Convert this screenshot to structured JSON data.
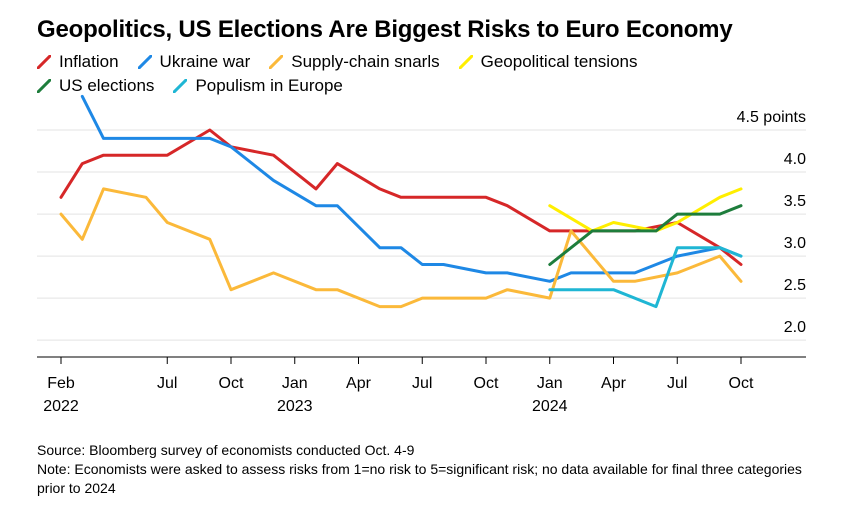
{
  "title": "Geopolitics, US Elections Are Biggest Risks to Euro Economy",
  "legend": [
    {
      "name": "Inflation",
      "color": "#d62728"
    },
    {
      "name": "Ukraine war",
      "color": "#1e88e5"
    },
    {
      "name": "Supply-chain snarls",
      "color": "#fbb93a"
    },
    {
      "name": "Geopolitical tensions",
      "color": "#ffee00"
    },
    {
      "name": "US elections",
      "color": "#1e7d3c"
    },
    {
      "name": "Populism in Europe",
      "color": "#1fb6d4"
    }
  ],
  "chart_data": {
    "type": "line",
    "title": "Geopolitics, US Elections Are Biggest Risks to Euro Economy",
    "ylim": [
      1.8,
      4.5
    ],
    "yticks": [
      {
        "value": 4.5,
        "label": "4.5 points"
      },
      {
        "value": 4.0,
        "label": "4.0"
      },
      {
        "value": 3.5,
        "label": "3.5"
      },
      {
        "value": 3.0,
        "label": "3.0"
      },
      {
        "value": 2.5,
        "label": "2.5"
      },
      {
        "value": 2.0,
        "label": "2.0"
      }
    ],
    "xticks": [
      {
        "date": "2022-02",
        "label": "Feb",
        "year": "2022"
      },
      {
        "date": "2022-07",
        "label": "Jul",
        "year": ""
      },
      {
        "date": "2022-10",
        "label": "Oct",
        "year": ""
      },
      {
        "date": "2023-01",
        "label": "Jan",
        "year": "2023"
      },
      {
        "date": "2023-04",
        "label": "Apr",
        "year": ""
      },
      {
        "date": "2023-07",
        "label": "Jul",
        "year": ""
      },
      {
        "date": "2023-10",
        "label": "Oct",
        "year": ""
      },
      {
        "date": "2024-01",
        "label": "Jan",
        "year": "2024"
      },
      {
        "date": "2024-04",
        "label": "Apr",
        "year": ""
      },
      {
        "date": "2024-07",
        "label": "Jul",
        "year": ""
      },
      {
        "date": "2024-10",
        "label": "Oct",
        "year": ""
      }
    ],
    "grid": true,
    "series": [
      {
        "name": "Inflation",
        "color": "#d62728",
        "x": [
          "2022-02",
          "2022-03",
          "2022-04",
          "2022-06",
          "2022-07",
          "2022-09",
          "2022-10",
          "2022-12",
          "2023-02",
          "2023-03",
          "2023-05",
          "2023-06",
          "2023-07",
          "2023-08",
          "2023-10",
          "2023-11",
          "2024-01",
          "2024-02",
          "2024-04",
          "2024-05",
          "2024-07",
          "2024-09",
          "2024-10"
        ],
        "values": [
          3.7,
          4.1,
          4.2,
          4.2,
          4.2,
          4.5,
          4.3,
          4.2,
          3.8,
          4.1,
          3.8,
          3.7,
          3.7,
          3.7,
          3.7,
          3.6,
          3.3,
          3.3,
          3.3,
          3.3,
          3.4,
          3.1,
          2.9
        ]
      },
      {
        "name": "Ukraine war",
        "color": "#1e88e5",
        "x": [
          "2022-03",
          "2022-04",
          "2022-06",
          "2022-07",
          "2022-09",
          "2022-10",
          "2022-12",
          "2023-02",
          "2023-03",
          "2023-05",
          "2023-06",
          "2023-07",
          "2023-08",
          "2023-10",
          "2023-11",
          "2024-01",
          "2024-02",
          "2024-04",
          "2024-05",
          "2024-07",
          "2024-09",
          "2024-10"
        ],
        "values": [
          4.9,
          4.4,
          4.4,
          4.4,
          4.4,
          4.3,
          3.9,
          3.6,
          3.6,
          3.1,
          3.1,
          2.9,
          2.9,
          2.8,
          2.8,
          2.7,
          2.8,
          2.8,
          2.8,
          3.0,
          3.1,
          3.0
        ]
      },
      {
        "name": "Supply-chain snarls",
        "color": "#fbb93a",
        "x": [
          "2022-02",
          "2022-03",
          "2022-04",
          "2022-06",
          "2022-07",
          "2022-09",
          "2022-10",
          "2022-12",
          "2023-02",
          "2023-03",
          "2023-05",
          "2023-06",
          "2023-07",
          "2023-08",
          "2023-10",
          "2023-11",
          "2024-01",
          "2024-02",
          "2024-04",
          "2024-05",
          "2024-07",
          "2024-09",
          "2024-10"
        ],
        "values": [
          3.5,
          3.2,
          3.8,
          3.7,
          3.4,
          3.2,
          2.6,
          2.8,
          2.6,
          2.6,
          2.4,
          2.4,
          2.5,
          2.5,
          2.5,
          2.6,
          2.5,
          3.3,
          2.7,
          2.7,
          2.8,
          3.0,
          2.7
        ]
      },
      {
        "name": "Geopolitical tensions",
        "color": "#ffee00",
        "x": [
          "2024-01",
          "2024-03",
          "2024-04",
          "2024-06",
          "2024-07",
          "2024-09",
          "2024-10"
        ],
        "values": [
          3.6,
          3.3,
          3.4,
          3.3,
          3.4,
          3.7,
          3.8
        ]
      },
      {
        "name": "US elections",
        "color": "#1e7d3c",
        "x": [
          "2024-01",
          "2024-03",
          "2024-04",
          "2024-06",
          "2024-07",
          "2024-09",
          "2024-10"
        ],
        "values": [
          2.9,
          3.3,
          3.3,
          3.3,
          3.5,
          3.5,
          3.6
        ]
      },
      {
        "name": "Populism in Europe",
        "color": "#1fb6d4",
        "x": [
          "2024-01",
          "2024-03",
          "2024-04",
          "2024-06",
          "2024-07",
          "2024-09",
          "2024-10"
        ],
        "values": [
          2.6,
          2.6,
          2.6,
          2.4,
          3.1,
          3.1,
          3.0
        ]
      }
    ]
  },
  "footer": {
    "source": "Source: Bloomberg survey of economists conducted Oct. 4-9",
    "note": "Note: Economists were asked to assess risks from 1=no risk to 5=significant risk; no data available for final three categories prior to 2024"
  }
}
